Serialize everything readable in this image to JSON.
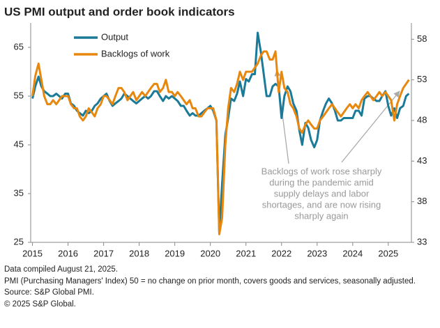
{
  "chart_data": {
    "type": "line",
    "title": "US PMI output and order book indicators",
    "x": [
      2015,
      2015.08,
      2015.17,
      2015.25,
      2015.33,
      2015.42,
      2015.5,
      2015.58,
      2015.67,
      2015.75,
      2015.83,
      2015.92,
      2016,
      2016.08,
      2016.17,
      2016.25,
      2016.33,
      2016.42,
      2016.5,
      2016.58,
      2016.67,
      2016.75,
      2016.83,
      2016.92,
      2017,
      2017.08,
      2017.17,
      2017.25,
      2017.33,
      2017.42,
      2017.5,
      2017.58,
      2017.67,
      2017.75,
      2017.83,
      2017.92,
      2018,
      2018.08,
      2018.17,
      2018.25,
      2018.33,
      2018.42,
      2018.5,
      2018.58,
      2018.67,
      2018.75,
      2018.83,
      2018.92,
      2019,
      2019.08,
      2019.17,
      2019.25,
      2019.33,
      2019.42,
      2019.5,
      2019.58,
      2019.67,
      2019.75,
      2019.83,
      2019.92,
      2020,
      2020.08,
      2020.17,
      2020.25,
      2020.33,
      2020.42,
      2020.5,
      2020.58,
      2020.67,
      2020.75,
      2020.83,
      2020.92,
      2021,
      2021.08,
      2021.17,
      2021.25,
      2021.33,
      2021.42,
      2021.5,
      2021.58,
      2021.67,
      2021.75,
      2021.83,
      2021.92,
      2022,
      2022.08,
      2022.17,
      2022.25,
      2022.33,
      2022.42,
      2022.5,
      2022.58,
      2022.67,
      2022.75,
      2022.83,
      2022.92,
      2023,
      2023.08,
      2023.17,
      2023.25,
      2023.33,
      2023.42,
      2023.5,
      2023.58,
      2023.67,
      2023.75,
      2023.83,
      2023.92,
      2024,
      2024.08,
      2024.17,
      2024.25,
      2024.33,
      2024.42,
      2024.5,
      2024.58,
      2024.67,
      2024.75,
      2024.83,
      2024.92,
      2025,
      2025.08,
      2025.17,
      2025.25,
      2025.33,
      2025.42,
      2025.5,
      2025.58
    ],
    "series": [
      {
        "name": "Output",
        "color": "#1b7a98",
        "axis": "y",
        "values": [
          54.5,
          57,
          59,
          57,
          56,
          55.5,
          55,
          55,
          55.5,
          55,
          54.5,
          55.5,
          55.5,
          53.5,
          53,
          52,
          51.5,
          51,
          52,
          51.5,
          52,
          53,
          53.5,
          54.5,
          55,
          55.5,
          54,
          53,
          53.5,
          54,
          54.5,
          55.5,
          55,
          54.5,
          54,
          53.5,
          54,
          54.5,
          55,
          54.5,
          55,
          56,
          56,
          55,
          54,
          55,
          54.5,
          55,
          54.5,
          54,
          53,
          53,
          52,
          51,
          51.5,
          51,
          51,
          51.5,
          52,
          52.5,
          53,
          52,
          50,
          27,
          37,
          47,
          50.5,
          54.5,
          54,
          55.5,
          58,
          55,
          58.5,
          58,
          59.5,
          59.5,
          68,
          64,
          59.5,
          55,
          55,
          57,
          57.5,
          57,
          50.5,
          55,
          57,
          56,
          53.5,
          52,
          48,
          45,
          49.5,
          48.5,
          46,
          44.5,
          46,
          50,
          52,
          53.5,
          54.5,
          53.5,
          52,
          50,
          50,
          50.5,
          50.5,
          50.5,
          50.5,
          52,
          52,
          51,
          54.5,
          55,
          55,
          54.5,
          54,
          54,
          55,
          56,
          53,
          51,
          52.5,
          50.5,
          52.5,
          53,
          55,
          55.5
        ]
      },
      {
        "name": "Backlogs of work",
        "color": "#e8870e",
        "axis": "y2",
        "values": [
          51,
          53.5,
          55,
          53,
          51,
          50,
          50,
          50.5,
          50,
          50.5,
          51,
          51,
          51,
          50,
          49.5,
          49.5,
          48.5,
          48,
          48.5,
          49.5,
          49,
          48.5,
          49.5,
          50,
          51,
          51,
          50.5,
          50,
          51,
          52,
          52,
          51.5,
          50.5,
          51,
          51.5,
          50.5,
          51,
          51.5,
          51,
          51.5,
          52,
          52.5,
          52.5,
          51.5,
          52,
          53,
          51.5,
          51.5,
          51,
          51.5,
          51,
          50.5,
          50,
          50.5,
          49.5,
          49.5,
          48.5,
          48.5,
          49,
          49.5,
          49.5,
          49.5,
          48,
          34,
          36,
          45,
          49.5,
          52,
          51.5,
          52.5,
          54,
          53,
          54,
          54,
          54,
          54.5,
          55,
          56,
          56.5,
          56.5,
          55.5,
          55.5,
          56.5,
          51.5,
          54,
          52,
          51.5,
          50,
          49.5,
          48.5,
          47,
          46.5,
          47.5,
          48,
          47.5,
          47,
          47,
          48,
          48.5,
          49,
          49.5,
          50,
          49.5,
          49,
          48.5,
          49,
          49.5,
          50,
          49.5,
          50,
          49.5,
          50.5,
          51,
          51.5,
          51,
          50.5,
          51,
          51.5,
          51,
          51.5,
          51,
          50.5,
          48,
          50,
          51,
          52,
          52.5,
          53
        ]
      }
    ],
    "xlim": [
      2014.95,
      2025.65
    ],
    "xticks": [
      2015,
      2016,
      2017,
      2018,
      2019,
      2020,
      2021,
      2022,
      2023,
      2024,
      2025
    ],
    "ylim": [
      25,
      70
    ],
    "yticks": [
      25,
      35,
      45,
      55,
      65
    ],
    "y2lim": [
      33,
      60
    ],
    "y2ticks": [
      33,
      38,
      43,
      48,
      53,
      58
    ],
    "annotation": [
      "Backlogs of work rose sharply",
      "during the pandemic amid",
      "supply delays and labor",
      "shortages, and are now rising",
      "sharply again"
    ],
    "notes": [
      "Data compiled August 21, 2025.",
      "PMI (Purchasing Managers' Index) 50 =  no change on prior month, covers goods and services, seasonally adjusted.",
      "Source: S&P Global PMI.",
      "© 2025 S&P Global."
    ]
  }
}
